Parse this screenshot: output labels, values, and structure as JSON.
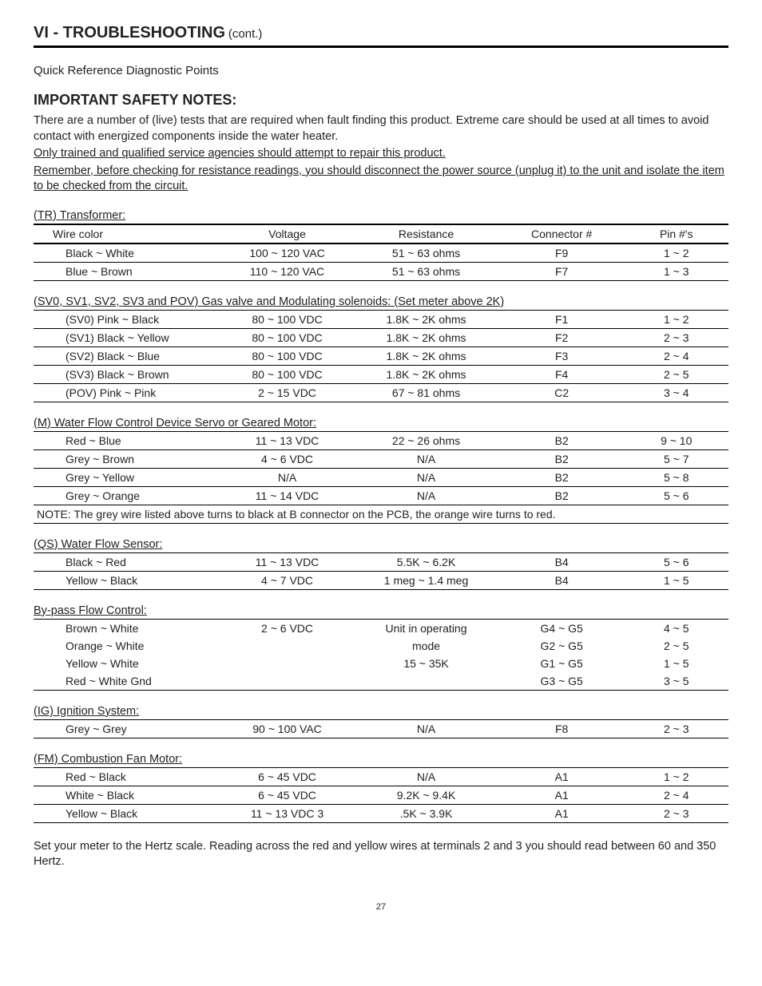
{
  "header": {
    "section_title": "VI - TROUBLESHOOTING",
    "cont": "(cont.)"
  },
  "subhead": "Quick Reference Diagnostic Points",
  "safety": {
    "title": "IMPORTANT SAFETY NOTES:",
    "p1": "There are a number of (live) tests that are required when fault finding this product. Extreme care should be used at all times to avoid contact with energized components inside the water heater.",
    "p2": "Only trained and qualified service agencies should attempt to repair this product.",
    "p3": "Remember, before checking for resistance readings, you should disconnect the power source (unplug it) to the unit and isolate the item to be checked from the circuit."
  },
  "columns": {
    "wire": "Wire color",
    "voltage": "Voltage",
    "resistance": "Resistance",
    "connector": "Connector #",
    "pins": "Pin #'s"
  },
  "tables": {
    "tr": {
      "title": "(TR) Transformer:",
      "rows": [
        {
          "wire": "Black ~ White",
          "voltage": "100 ~ 120 VAC",
          "resistance": "51 ~ 63 ohms",
          "connector": "F9",
          "pins": "1 ~ 2"
        },
        {
          "wire": "Blue ~ Brown",
          "voltage": "110 ~ 120 VAC",
          "resistance": "51 ~ 63 ohms",
          "connector": "F7",
          "pins": "1 ~ 3"
        }
      ]
    },
    "sv": {
      "title": "(SV0, SV1, SV2, SV3 and POV) Gas valve and Modulating solenoids: (Set meter above 2K)",
      "rows": [
        {
          "wire": "(SV0) Pink ~ Black",
          "voltage": "80 ~ 100 VDC",
          "resistance": "1.8K ~ 2K ohms",
          "connector": "F1",
          "pins": "1 ~ 2"
        },
        {
          "wire": "(SV1) Black ~ Yellow",
          "voltage": "80 ~ 100 VDC",
          "resistance": "1.8K ~ 2K ohms",
          "connector": "F2",
          "pins": "2 ~ 3"
        },
        {
          "wire": "(SV2) Black ~ Blue",
          "voltage": "80 ~ 100 VDC",
          "resistance": "1.8K ~ 2K ohms",
          "connector": "F3",
          "pins": "2 ~ 4"
        },
        {
          "wire": "(SV3) Black ~ Brown",
          "voltage": "80 ~ 100 VDC",
          "resistance": "1.8K ~ 2K ohms",
          "connector": "F4",
          "pins": "2 ~ 5"
        },
        {
          "wire": "(POV) Pink ~ Pink",
          "voltage": "2 ~ 15 VDC",
          "resistance": "67 ~ 81 ohms",
          "connector": "C2",
          "pins": "3 ~ 4"
        }
      ]
    },
    "m": {
      "title": "(M) Water Flow Control Device Servo or Geared Motor:",
      "rows": [
        {
          "wire": "Red ~ Blue",
          "voltage": "11 ~ 13 VDC",
          "resistance": "22 ~ 26 ohms",
          "connector": "B2",
          "pins": "9 ~ 10"
        },
        {
          "wire": "Grey ~ Brown",
          "voltage": "4 ~ 6 VDC",
          "resistance": "N/A",
          "connector": "B2",
          "pins": "5 ~ 7"
        },
        {
          "wire": "Grey ~ Yellow",
          "voltage": "N/A",
          "resistance": "N/A",
          "connector": "B2",
          "pins": "5 ~ 8"
        },
        {
          "wire": "Grey ~ Orange",
          "voltage": "11 ~ 14 VDC",
          "resistance": "N/A",
          "connector": "B2",
          "pins": "5 ~ 6"
        }
      ],
      "note": "NOTE: The grey wire listed above turns to black at B connector on the PCB, the orange wire turns to red."
    },
    "qs": {
      "title": "(QS) Water Flow Sensor:",
      "rows": [
        {
          "wire": "Black ~ Red",
          "voltage": "11 ~ 13 VDC",
          "resistance": "5.5K ~ 6.2K",
          "connector": "B4",
          "pins": "5 ~ 6"
        },
        {
          "wire": "Yellow ~ Black",
          "voltage": "4 ~ 7 VDC",
          "resistance": "1 meg ~ 1.4 meg",
          "connector": "B4",
          "pins": "1 ~ 5"
        }
      ]
    },
    "bypass": {
      "title": "By-pass Flow Control:",
      "rows": [
        {
          "wire": "Brown ~ White",
          "voltage": "2 ~ 6 VDC",
          "resistance": "Unit in operating",
          "connector": "G4 ~ G5",
          "pins": "4 ~ 5"
        },
        {
          "wire": "Orange ~ White",
          "voltage": "",
          "resistance": "mode",
          "connector": "G2 ~ G5",
          "pins": "2 ~ 5"
        },
        {
          "wire": "Yellow ~ White",
          "voltage": "",
          "resistance": "15 ~ 35K",
          "connector": "G1 ~ G5",
          "pins": "1 ~ 5"
        },
        {
          "wire": "Red ~ White Gnd",
          "voltage": "",
          "resistance": "",
          "connector": "G3 ~ G5",
          "pins": "3 ~ 5"
        }
      ]
    },
    "ig": {
      "title": "(IG) Ignition System:",
      "rows": [
        {
          "wire": "Grey ~ Grey",
          "voltage": "90 ~ 100 VAC",
          "resistance": "N/A",
          "connector": "F8",
          "pins": "2 ~ 3"
        }
      ]
    },
    "fm": {
      "title": "(FM) Combustion Fan Motor:",
      "rows": [
        {
          "wire": "Red ~ Black",
          "voltage": "6 ~ 45 VDC",
          "resistance": "N/A",
          "connector": "A1",
          "pins": "1 ~ 2"
        },
        {
          "wire": "White ~ Black",
          "voltage": "6 ~ 45 VDC",
          "resistance": "9.2K ~ 9.4K",
          "connector": "A1",
          "pins": "2 ~ 4"
        },
        {
          "wire": "Yellow ~ Black",
          "voltage": "11 ~ 13 VDC 3",
          "resistance": ".5K ~ 3.9K",
          "connector": "A1",
          "pins": "2 ~ 3"
        }
      ]
    }
  },
  "footer_note": "Set your meter to the Hertz scale. Reading across the red and yellow wires at terminals 2 and 3 you should read between 60 and 350 Hertz.",
  "page_number": "27"
}
